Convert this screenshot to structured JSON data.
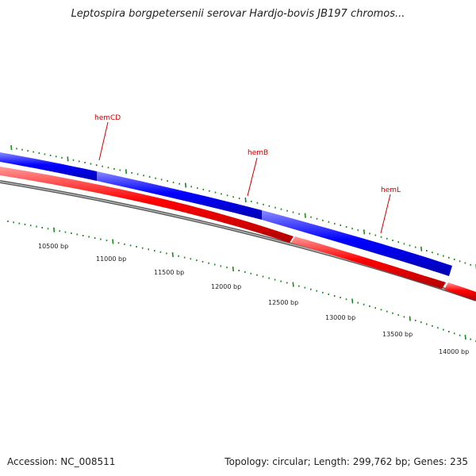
{
  "title": "Leptospira borgpetersenii serovar Hardjo-bovis JB197 chromos...",
  "footer": {
    "accession": "Accession: NC_008511",
    "summary": "Topology: circular; Length: 299,762 bp; Genes: 235"
  },
  "genes": [
    {
      "name": "hemCD",
      "strand": "plus",
      "color": "#0000ff"
    },
    {
      "name": "hemB",
      "strand": "plus",
      "color": "#0000ff"
    },
    {
      "name": "hemL",
      "strand": "plus",
      "color": "#0000ff"
    },
    {
      "name": "",
      "strand": "minus",
      "color": "#ff0000"
    },
    {
      "name": "",
      "strand": "minus",
      "color": "#ff0000"
    },
    {
      "name": "",
      "strand": "minus",
      "color": "#ff0000"
    }
  ],
  "scale_labels": [
    "10500 bp",
    "11000 bp",
    "11500 bp",
    "12000 bp",
    "12500 bp",
    "13000 bp",
    "13500 bp",
    "14000 bp"
  ],
  "colors": {
    "plus_strand": "#0000ff",
    "minus_strand": "#ff0000",
    "backbone": "#777777",
    "ticks": "#1a8a1a",
    "gene_label": "#cc0000"
  }
}
